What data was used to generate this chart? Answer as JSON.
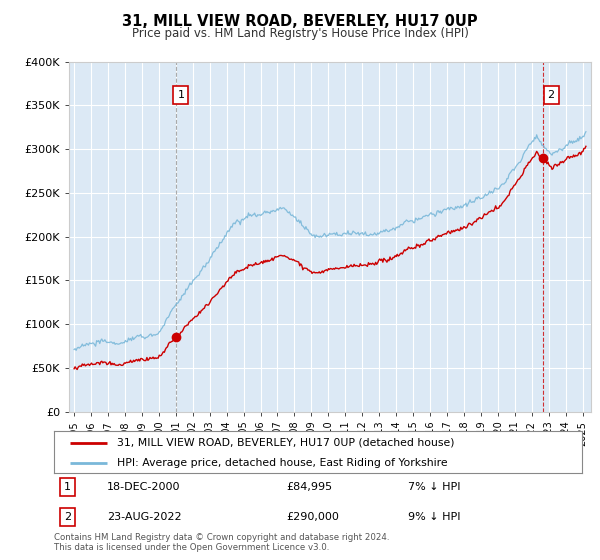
{
  "title": "31, MILL VIEW ROAD, BEVERLEY, HU17 0UP",
  "subtitle": "Price paid vs. HM Land Registry's House Price Index (HPI)",
  "legend_line1": "31, MILL VIEW ROAD, BEVERLEY, HU17 0UP (detached house)",
  "legend_line2": "HPI: Average price, detached house, East Riding of Yorkshire",
  "annotation1_label": "1",
  "annotation1_date": "18-DEC-2000",
  "annotation1_price": 84995,
  "annotation1_note": "7% ↓ HPI",
  "annotation2_label": "2",
  "annotation2_date": "23-AUG-2022",
  "annotation2_price": 290000,
  "annotation2_note": "9% ↓ HPI",
  "footer1": "Contains HM Land Registry data © Crown copyright and database right 2024.",
  "footer2": "This data is licensed under the Open Government Licence v3.0.",
  "hpi_color": "#7ab8d9",
  "price_color": "#cc0000",
  "marker_color": "#cc0000",
  "vline1_color": "#aaaaaa",
  "vline2_color": "#cc0000",
  "bg_color": "#dce9f5",
  "grid_color": "#ffffff",
  "ylim": [
    0,
    400000
  ],
  "yticks": [
    0,
    50000,
    100000,
    150000,
    200000,
    250000,
    300000,
    350000,
    400000
  ],
  "ytick_labels": [
    "£0",
    "£50K",
    "£100K",
    "£150K",
    "£200K",
    "£250K",
    "£300K",
    "£350K",
    "£400K"
  ],
  "sale1_year": 2001.0,
  "sale2_year": 2022.65
}
